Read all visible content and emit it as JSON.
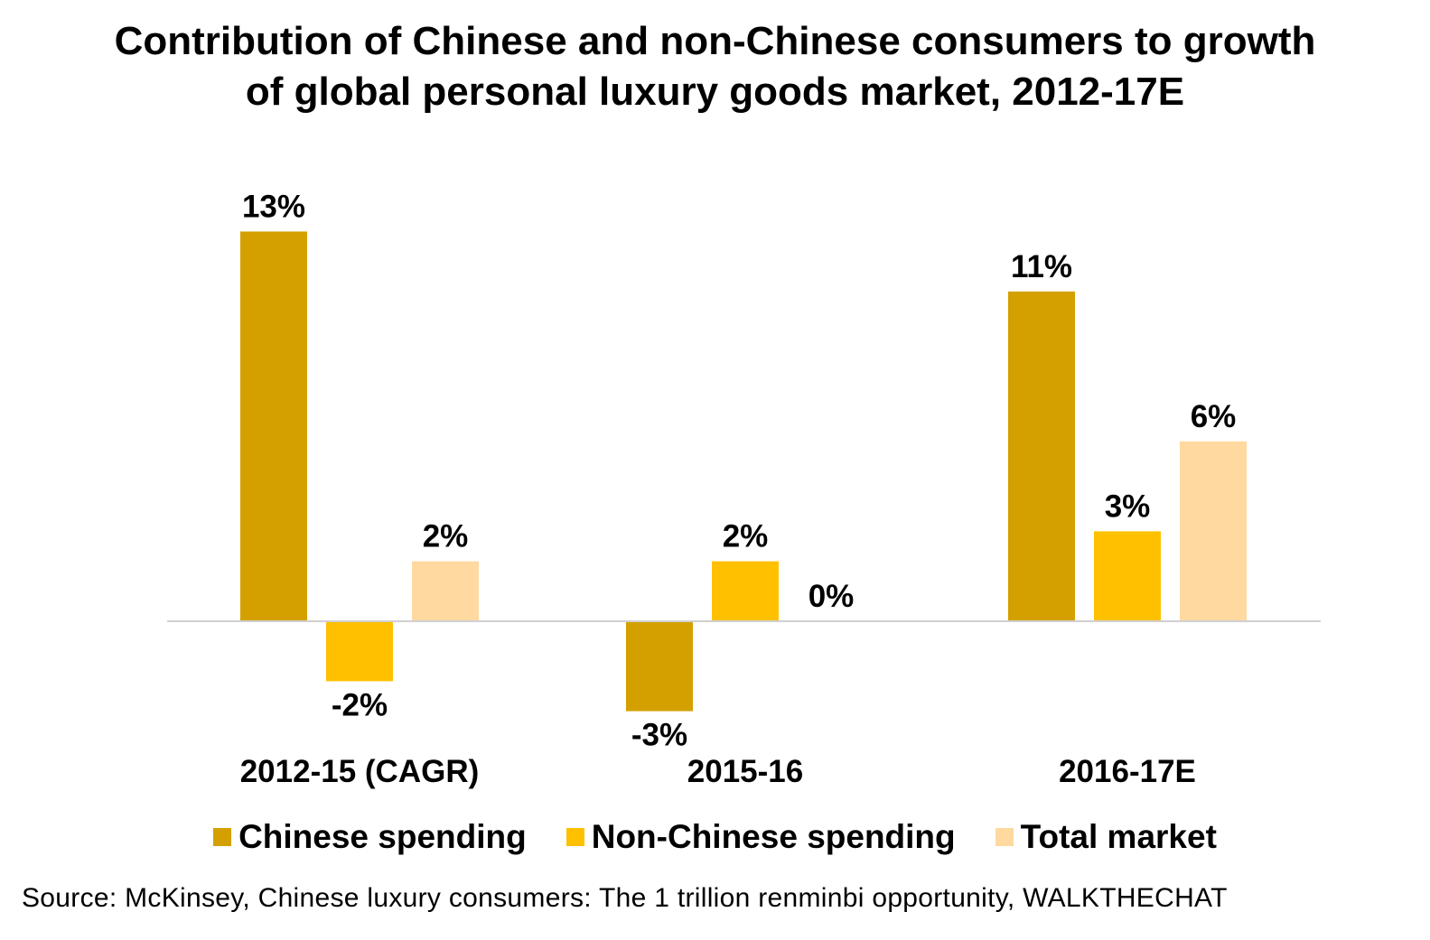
{
  "title": {
    "line1": "Contribution of Chinese and non-Chinese consumers to growth",
    "line2": "of global personal luxury goods market, 2012-17E"
  },
  "chart_data": {
    "type": "bar",
    "title": "Contribution of Chinese and non-Chinese consumers to growth of global personal luxury goods market, 2012-17E",
    "categories": [
      "2012-15 (CAGR)",
      "2015-16",
      "2016-17E"
    ],
    "series": [
      {
        "name": "Chinese spending",
        "color": "#D4A000",
        "values": [
          13,
          -3,
          11
        ],
        "labels": [
          "13%",
          "-3%",
          "11%"
        ]
      },
      {
        "name": "Non-Chinese spending",
        "color": "#FFC000",
        "values": [
          -2,
          2,
          3
        ],
        "labels": [
          "-2%",
          "2%",
          "3%"
        ]
      },
      {
        "name": "Total market",
        "color": "#FFD9A0",
        "values": [
          2,
          0,
          6
        ],
        "labels": [
          "2%",
          "0%",
          "6%"
        ]
      }
    ],
    "xlabel": "",
    "ylabel": "",
    "ylim": [
      -4,
      14
    ],
    "grid": false,
    "legend_position": "bottom"
  },
  "legend": {
    "items": [
      {
        "label": "Chinese spending",
        "color": "#D4A000"
      },
      {
        "label": "Non-Chinese spending",
        "color": "#FFC000"
      },
      {
        "label": "Total market",
        "color": "#FFD9A0"
      }
    ]
  },
  "source": "Source: McKinsey, Chinese luxury consumers: The 1 trillion renminbi opportunity, WALKTHECHAT"
}
